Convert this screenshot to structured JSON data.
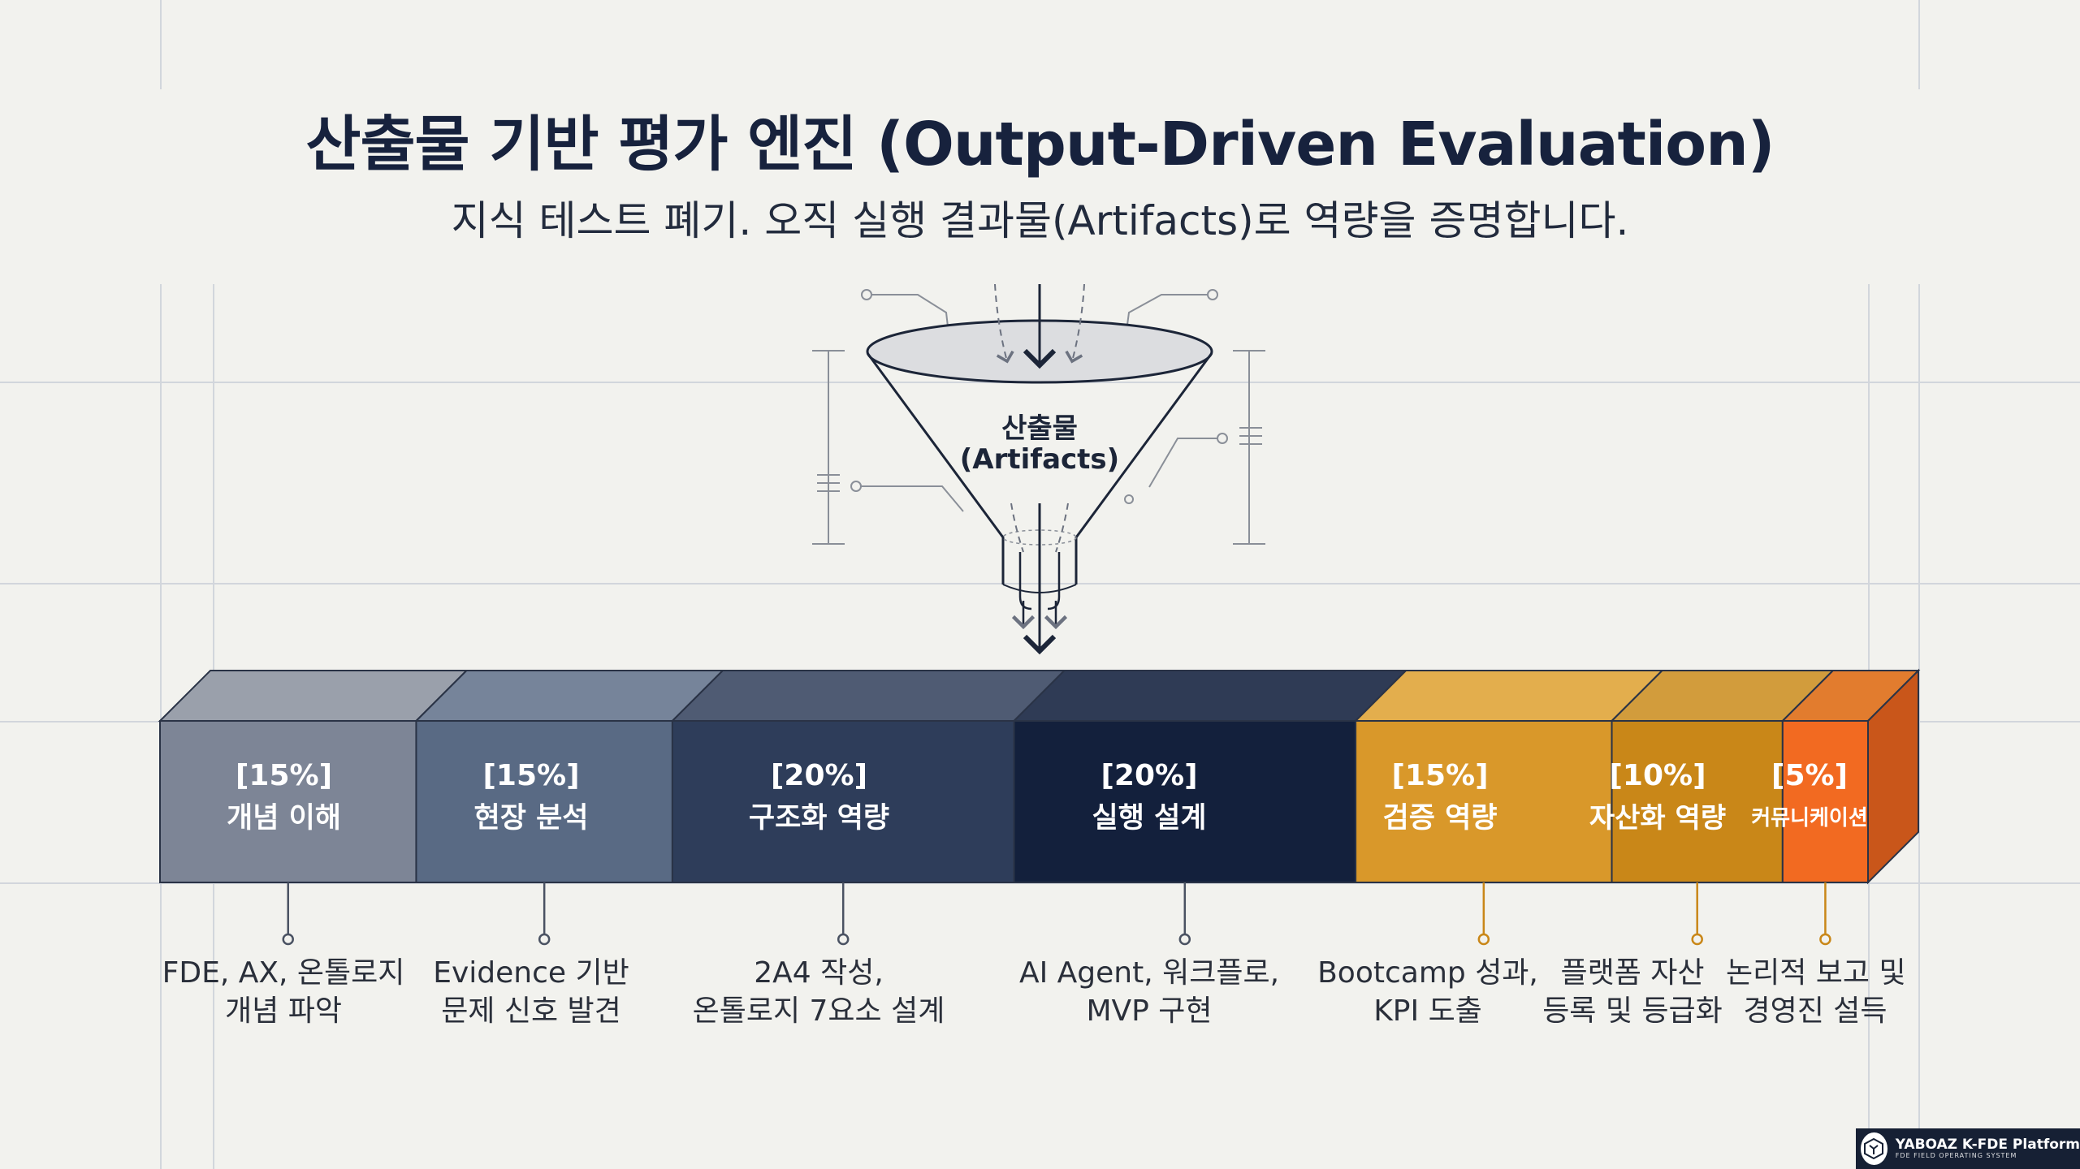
{
  "header": {
    "title": "산출물 기반 평가 엔진 (Output-Driven Evaluation)",
    "subtitle": "지식 테스트 폐기. 오직 실행 결과물(Artifacts)로 역량을 증명합니다."
  },
  "funnel": {
    "label_line1": "산출물",
    "label_line2": "(Artifacts)"
  },
  "segments": [
    {
      "pct": "[15%]",
      "name": "개념 이해",
      "color": "#7d8596",
      "top": "#9aa0ab",
      "side": "#626a7a",
      "desc": [
        "FDE, AX, 온톨로지",
        "개념 파악"
      ]
    },
    {
      "pct": "[15%]",
      "name": "현장 분석",
      "color": "#596a84",
      "top": "#76849a",
      "side": "#48566c",
      "desc": [
        "Evidence 기반",
        "문제 신호 발견"
      ]
    },
    {
      "pct": "[20%]",
      "name": "구조화 역량",
      "color": "#2e3d5a",
      "top": "#4f5b73",
      "side": "#25324a",
      "desc": [
        "2A4 작성,",
        "온톨로지 7요소 설계"
      ]
    },
    {
      "pct": "[20%]",
      "name": "실행 설계",
      "color": "#13203c",
      "top": "#2f3b55",
      "side": "#0d1830",
      "desc": [
        "AI Agent, 워크플로,",
        "MVP 구현"
      ]
    },
    {
      "pct": "[15%]",
      "name": "검증 역량",
      "color": "#d9982a",
      "top": "#e3ae4d",
      "side": "#b87d1d",
      "desc": [
        "Bootcamp 성과,",
        "KPI 도출"
      ]
    },
    {
      "pct": "[10%]",
      "name": "자산화 역량",
      "color": "#c98718",
      "top": "#d29c3c",
      "side": "#a66d12",
      "desc": [
        "플랫폼 자산",
        "등록 및 등급화"
      ]
    },
    {
      "pct": "[5%]",
      "name": "커뮤니케이션",
      "color": "#f26a21",
      "top": "#e27c2e",
      "side": "#c9561a",
      "desc": [
        "논리적 보고 및",
        "경영진 설득"
      ]
    }
  ],
  "footer_logo": {
    "title": "YABOAZ K-FDE Platform",
    "subtitle": "FDE FIELD OPERATING SYSTEM"
  }
}
